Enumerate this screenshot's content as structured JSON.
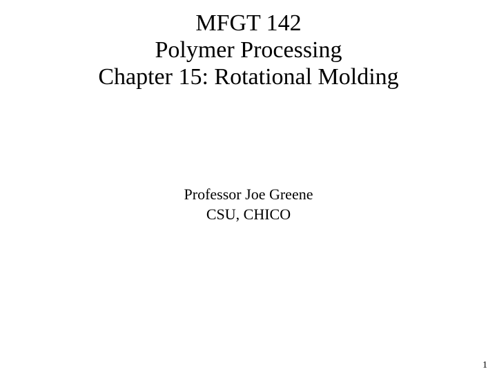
{
  "slide": {
    "title": {
      "line1": "MFGT 142",
      "line2": "Polymer Processing",
      "line3": "Chapter 15: Rotational Molding",
      "fontsize": 34,
      "color": "#000000",
      "font_weight": "normal"
    },
    "subtitle": {
      "line1": "Professor Joe Greene",
      "line2": "CSU, CHICO",
      "fontsize": 22,
      "color": "#000000",
      "font_weight": "normal"
    },
    "page_number": {
      "value": "1",
      "fontsize": 14,
      "color": "#000000"
    },
    "background_color": "#ffffff",
    "font_family": "Times New Roman"
  }
}
